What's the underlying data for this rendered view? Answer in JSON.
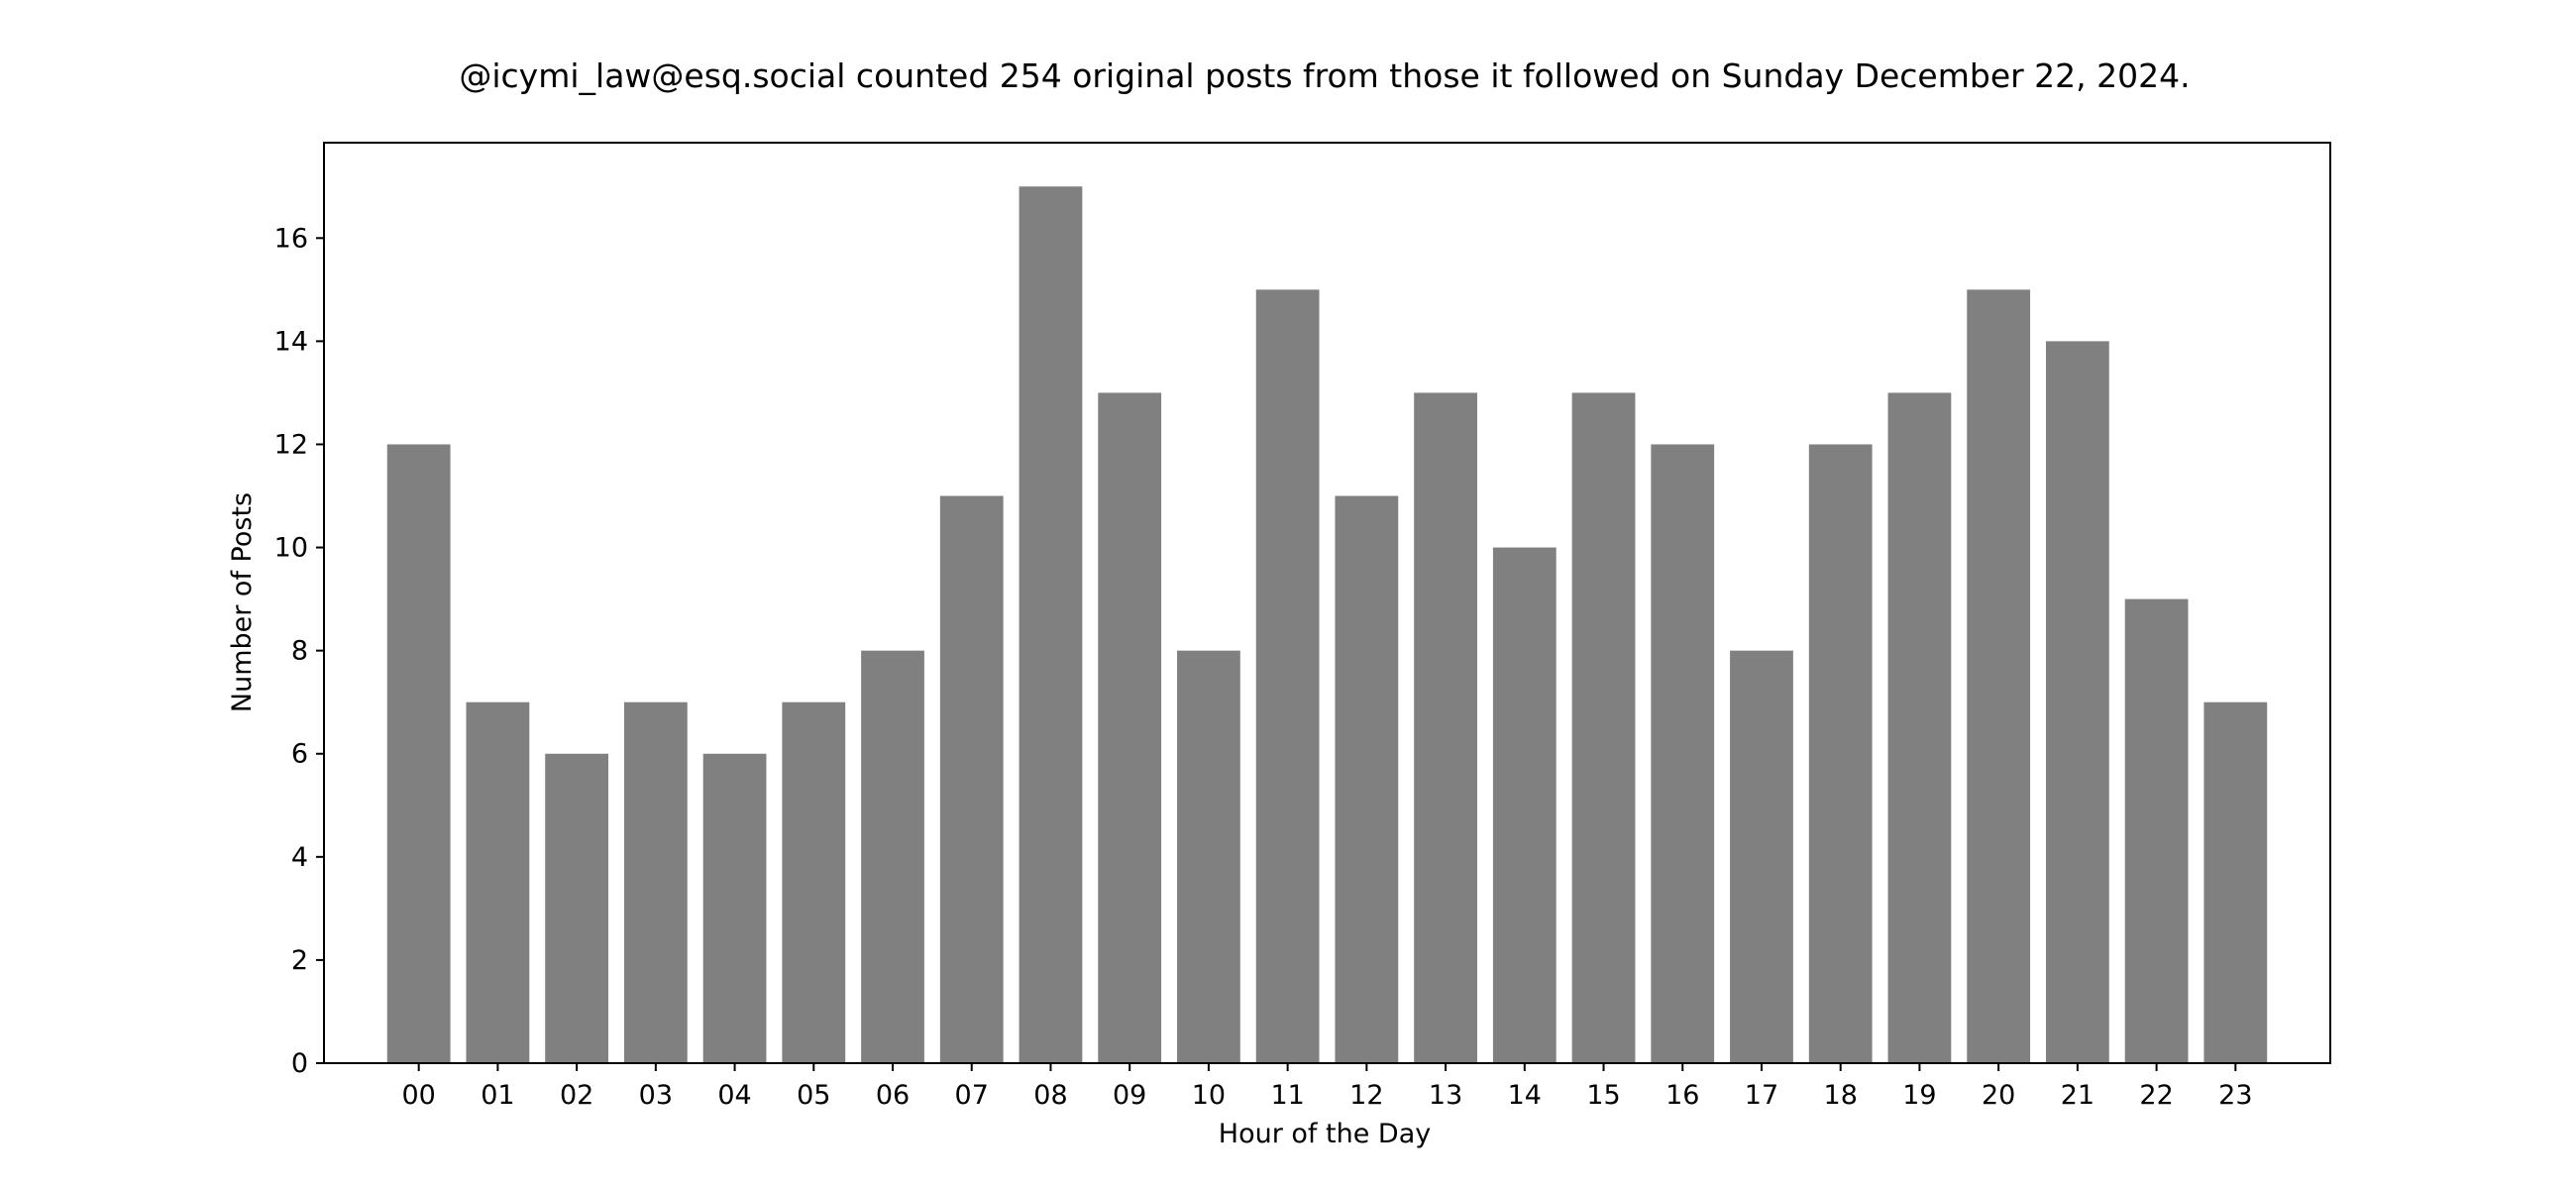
{
  "chart_data": {
    "type": "bar",
    "title": "@icymi_law@esq.social counted 254 original posts from those it followed on Sunday December 22, 2024.",
    "xlabel": "Hour of the Day",
    "ylabel": "Number of Posts",
    "categories": [
      "00",
      "01",
      "02",
      "03",
      "04",
      "05",
      "06",
      "07",
      "08",
      "09",
      "10",
      "11",
      "12",
      "13",
      "14",
      "15",
      "16",
      "17",
      "18",
      "19",
      "20",
      "21",
      "22",
      "23"
    ],
    "values": [
      12,
      7,
      6,
      7,
      6,
      7,
      8,
      11,
      17,
      13,
      8,
      15,
      11,
      13,
      10,
      13,
      12,
      8,
      12,
      13,
      15,
      14,
      9,
      7
    ],
    "ylim": [
      0,
      17.85
    ],
    "yticks": [
      0,
      2,
      4,
      6,
      8,
      10,
      12,
      14,
      16
    ],
    "grid": false,
    "bar_color": "#808080"
  }
}
